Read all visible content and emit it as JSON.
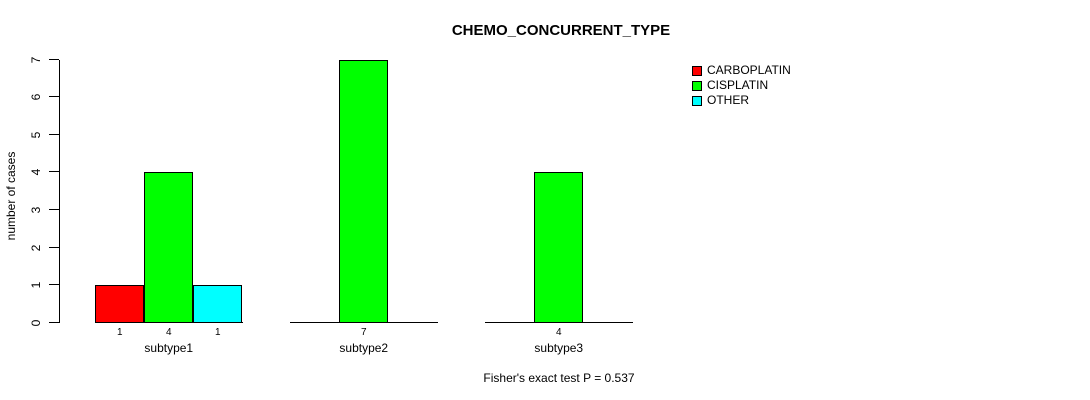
{
  "chart_data": {
    "type": "bar",
    "title": "CHEMO_CONCURRENT_TYPE",
    "ylabel": "number of cases",
    "xlabel": "",
    "ylim": [
      0,
      7
    ],
    "yticks": [
      0,
      1,
      2,
      3,
      4,
      5,
      6,
      7
    ],
    "grid": false,
    "legend_position": "top-right",
    "categories": [
      "subtype1",
      "subtype2",
      "subtype3"
    ],
    "series": [
      {
        "name": "CARBOPLATIN",
        "color": "#ff0000",
        "values": [
          1,
          0,
          0
        ]
      },
      {
        "name": "CISPLATIN",
        "color": "#00ff00",
        "values": [
          4,
          7,
          4
        ]
      },
      {
        "name": "OTHER",
        "color": "#00ffff",
        "values": [
          1,
          0,
          0
        ]
      }
    ],
    "bar_value_labels": [
      [
        "1",
        "4",
        "1"
      ],
      [
        "7"
      ],
      [
        "4"
      ]
    ],
    "annotation": "Fisher's exact test P = 0.537"
  },
  "colors": {
    "axis": "#000000",
    "background": "#ffffff"
  }
}
